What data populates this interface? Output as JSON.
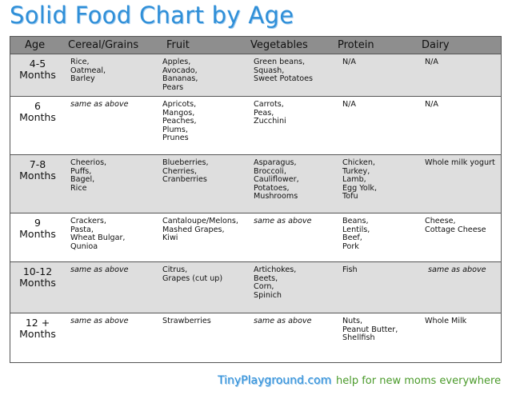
{
  "header": {
    "title": "Solid Food Chart by Age"
  },
  "table": {
    "columns": [
      "Age",
      "Cereal/Grains",
      "Fruit",
      "Vegetables",
      "Protein",
      "Dairy"
    ],
    "rows": [
      {
        "age": [
          "4-5",
          "Months"
        ],
        "cells": [
          [
            "Rice,",
            "Oatmeal,",
            "Barley"
          ],
          [
            "Apples,",
            "Avocado,",
            "Bananas,",
            "Pears"
          ],
          [
            "Green beans,",
            "Squash,",
            "Sweet Potatoes"
          ],
          [
            "N/A"
          ],
          [
            "N/A"
          ]
        ]
      },
      {
        "age": [
          "6",
          "Months"
        ],
        "cells": [
          "same as above",
          [
            "Apricots,",
            "Mangos,",
            "Peaches,",
            "Plums,",
            "Prunes"
          ],
          [
            "Carrots,",
            "Peas,",
            "Zucchini"
          ],
          [
            "N/A"
          ],
          [
            "N/A"
          ]
        ]
      },
      {
        "age": [
          "7-8",
          "Months"
        ],
        "cells": [
          [
            "Cheerios,",
            "Puffs,",
            "Bagel,",
            "Rice"
          ],
          [
            "Blueberries,",
            "Cherries,",
            "Cranberries"
          ],
          [
            "Asparagus,",
            "Broccoli,",
            "Cauliflower,",
            "Potatoes,",
            "Mushrooms"
          ],
          [
            "Chicken,",
            "Turkey,",
            "Lamb,",
            "Egg Yolk,",
            "Tofu"
          ],
          [
            "Whole milk yogurt"
          ]
        ]
      },
      {
        "age": [
          "9",
          "Months"
        ],
        "cells": [
          [
            "Crackers,",
            "Pasta,",
            "Wheat Bulgar,",
            "Qunioa"
          ],
          [
            "Cantaloupe/Melons,",
            "Mashed Grapes,",
            "Kiwi"
          ],
          "same as above",
          [
            "Beans,",
            "Lentils,",
            "Beef,",
            "Pork"
          ],
          [
            "Cheese,",
            "Cottage Cheese"
          ]
        ]
      },
      {
        "age": [
          "10-12",
          "Months"
        ],
        "cells": [
          "same as above",
          [
            "Citrus,",
            "Grapes (cut up)"
          ],
          [
            "Artichokes,",
            "Beets,",
            "Corn,",
            "Spinich"
          ],
          [
            "Fish"
          ],
          "same as above"
        ]
      },
      {
        "age": [
          "12 +",
          "Months"
        ],
        "cells": [
          "same as above",
          [
            "Strawberries"
          ],
          "same as above",
          [
            "Nuts,",
            "Peanut Butter,",
            "Shellfish"
          ],
          [
            "Whole Milk"
          ]
        ]
      }
    ]
  },
  "footer": {
    "site": "TinyPlayground.com",
    "tagline": "help for new moms everywhere"
  }
}
